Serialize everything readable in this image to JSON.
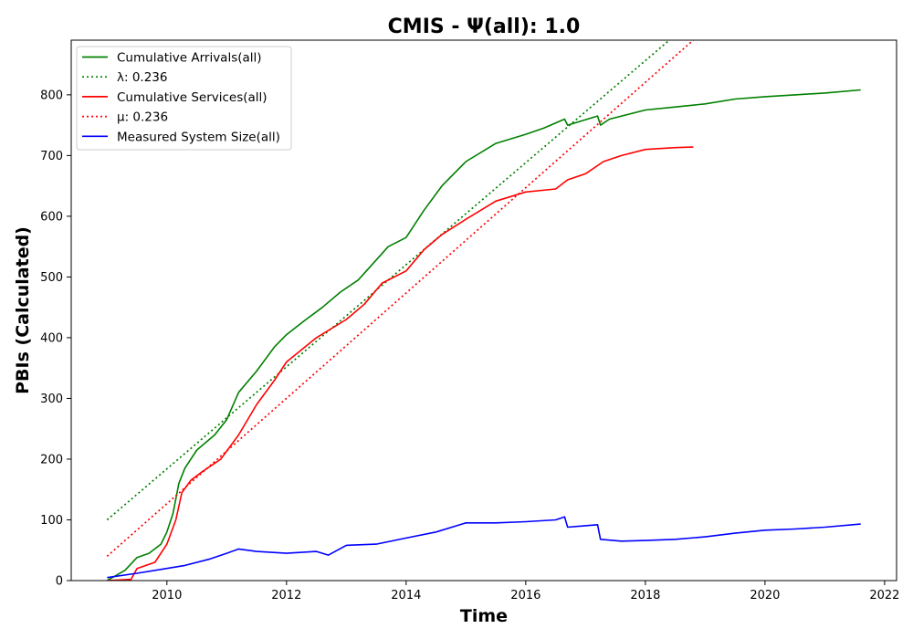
{
  "chart_data": {
    "type": "line",
    "title": "CMIS -  Ψ(all): 1.0",
    "xlabel": "Time",
    "ylabel": "PBIs (Calculated)",
    "xlim": [
      2008.4,
      2022.2
    ],
    "ylim": [
      0,
      890
    ],
    "x_ticks": [
      2010,
      2012,
      2014,
      2016,
      2018,
      2020,
      2022
    ],
    "y_ticks": [
      0,
      100,
      200,
      300,
      400,
      500,
      600,
      700,
      800
    ],
    "grid": false,
    "legend_position": "upper-left",
    "series": [
      {
        "name": "Cumulative Arrivals(all)",
        "color": "#008000",
        "style": "solid",
        "x": [
          2009.0,
          2009.3,
          2009.5,
          2009.7,
          2009.9,
          2010.0,
          2010.1,
          2010.2,
          2010.3,
          2010.5,
          2010.8,
          2011.0,
          2011.2,
          2011.5,
          2011.8,
          2012.0,
          2012.3,
          2012.6,
          2012.9,
          2013.2,
          2013.5,
          2013.7,
          2014.0,
          2014.3,
          2014.6,
          2015.0,
          2015.5,
          2016.0,
          2016.3,
          2016.65,
          2016.7,
          2017.2,
          2017.25,
          2017.4,
          2018.0,
          2018.5,
          2019.0,
          2019.5,
          2020.0,
          2020.5,
          2021.0,
          2021.6
        ],
        "values": [
          0,
          17,
          38,
          45,
          60,
          80,
          110,
          160,
          185,
          215,
          240,
          265,
          310,
          345,
          385,
          405,
          428,
          450,
          475,
          495,
          528,
          550,
          565,
          610,
          650,
          690,
          720,
          735,
          745,
          760,
          750,
          765,
          750,
          760,
          775,
          780,
          785,
          793,
          797,
          800,
          803,
          808
        ]
      },
      {
        "name": "λ: 0.236",
        "color": "#008000",
        "style": "dotted",
        "x": [
          2009.0,
          2018.4
        ],
        "values": [
          100,
          890
        ]
      },
      {
        "name": "Cumulative Services(all)",
        "color": "#ff0000",
        "style": "solid",
        "x": [
          2009.0,
          2009.4,
          2009.5,
          2009.8,
          2010.0,
          2010.15,
          2010.25,
          2010.4,
          2010.6,
          2010.9,
          2011.2,
          2011.5,
          2011.8,
          2012.0,
          2012.5,
          2013.0,
          2013.3,
          2013.6,
          2014.0,
          2014.3,
          2014.6,
          2015.0,
          2015.5,
          2016.0,
          2016.5,
          2016.7,
          2017.0,
          2017.3,
          2017.6,
          2018.0,
          2018.5,
          2018.8
        ],
        "values": [
          0,
          2,
          20,
          30,
          60,
          100,
          145,
          165,
          180,
          200,
          240,
          290,
          330,
          360,
          400,
          430,
          455,
          490,
          510,
          545,
          570,
          595,
          625,
          640,
          645,
          660,
          670,
          690,
          700,
          710,
          713,
          714
        ]
      },
      {
        "name": "μ: 0.236",
        "color": "#ff0000",
        "style": "dotted",
        "x": [
          2009.0,
          2018.8
        ],
        "values": [
          40,
          890
        ]
      },
      {
        "name": "Measured System Size(all)",
        "color": "#0000ff",
        "style": "solid",
        "x": [
          2009.0,
          2009.5,
          2010.0,
          2010.3,
          2010.7,
          2011.0,
          2011.2,
          2011.5,
          2012.0,
          2012.5,
          2012.7,
          2013.0,
          2013.5,
          2014.0,
          2014.5,
          2015.0,
          2015.5,
          2016.0,
          2016.5,
          2016.65,
          2016.7,
          2017.2,
          2017.25,
          2017.6,
          2018.0,
          2018.5,
          2019.0,
          2019.5,
          2020.0,
          2020.5,
          2021.0,
          2021.6
        ],
        "values": [
          5,
          12,
          20,
          25,
          35,
          45,
          52,
          48,
          45,
          48,
          42,
          58,
          60,
          70,
          80,
          95,
          95,
          97,
          100,
          105,
          88,
          92,
          68,
          65,
          66,
          68,
          72,
          78,
          83,
          85,
          88,
          93
        ]
      }
    ]
  }
}
